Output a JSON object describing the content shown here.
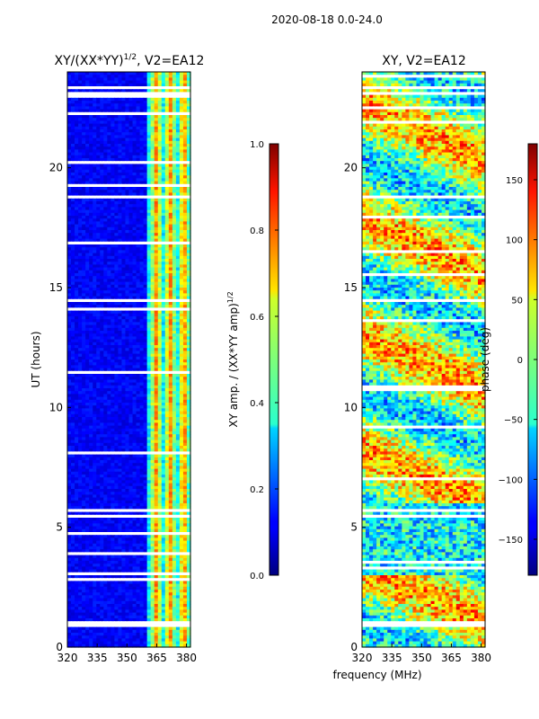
{
  "figure_title": "2020-08-18 0.0-24.0",
  "x_axis_label": "frequency (MHz)",
  "chart_data": [
    {
      "type": "heatmap",
      "title": "XY/(XX*YY)",
      "title_exponent": "1/2",
      "title_suffix": ", V2=EA12",
      "xlabel": "",
      "ylabel": "UT (hours)",
      "xlim": [
        320,
        382
      ],
      "ylim": [
        0,
        24
      ],
      "x_ticks": [
        320,
        335,
        350,
        365,
        380
      ],
      "y_ticks": [
        0,
        5,
        10,
        15,
        20
      ],
      "colorbar": {
        "label": "XY amp. / (XX*YY amp)",
        "label_exponent": "1/2",
        "range": [
          0.0,
          1.0
        ],
        "ticks": [
          "0.0",
          "0.2",
          "0.4",
          "0.6",
          "0.8",
          "1.0"
        ],
        "tick_values": [
          0.0,
          0.2,
          0.4,
          0.6,
          0.8,
          1.0
        ]
      },
      "colormap": "jet",
      "bright_band_MHz": [
        360,
        381
      ],
      "flagged_hours": [
        0.85,
        1.0,
        5.5,
        5.7,
        14.5,
        18.8,
        23.1,
        23.4
      ]
    },
    {
      "type": "heatmap",
      "title": "XY, V2=EA12",
      "xlabel": "frequency (MHz)",
      "ylabel": "",
      "xlim": [
        320,
        382
      ],
      "ylim": [
        0,
        24
      ],
      "x_ticks": [
        320,
        335,
        350,
        365,
        380
      ],
      "y_ticks": [
        0,
        5,
        10,
        15,
        20
      ],
      "colorbar": {
        "label": "phase (deg)",
        "range": [
          -180,
          180
        ],
        "ticks": [
          "−150",
          "−100",
          "−50",
          "0",
          "50",
          "100",
          "150"
        ],
        "tick_values": [
          -150,
          -100,
          -50,
          0,
          50,
          100,
          150
        ]
      },
      "colormap": "jet",
      "flagged_hours": [
        0.85,
        1.0,
        5.5,
        5.7,
        14.5,
        18.8,
        23.1,
        23.4
      ]
    }
  ]
}
